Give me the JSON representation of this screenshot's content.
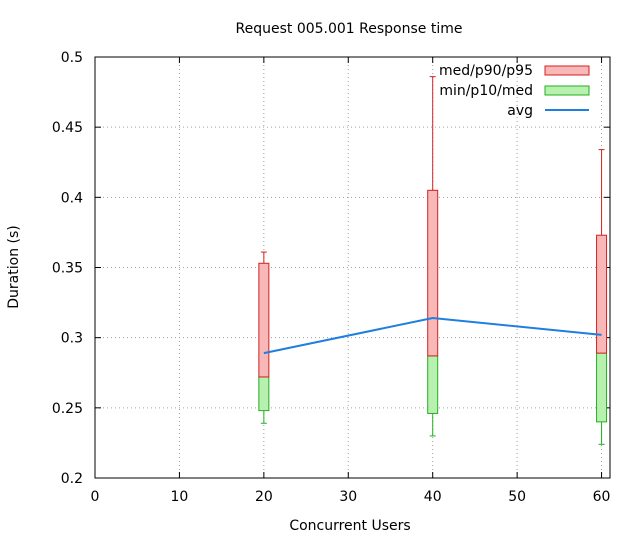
{
  "chart_data": {
    "type": "box",
    "title": "Request 005.001 Response time",
    "xlabel": "Concurrent Users",
    "ylabel": "Duration (s)",
    "xlim": [
      0,
      61
    ],
    "ylim": [
      0.2,
      0.5
    ],
    "x_ticks": [
      "0",
      "10",
      "20",
      "30",
      "40",
      "50",
      "60"
    ],
    "y_ticks": [
      "0.2",
      "0.25",
      "0.3",
      "0.35",
      "0.4",
      "0.45",
      "0.5"
    ],
    "grid": true,
    "legend_position": "top-right",
    "legend": [
      {
        "label": "med/p90/p95",
        "kind": "box",
        "fill": "#f8b8b8",
        "stroke": "#d42020"
      },
      {
        "label": "min/p10/med",
        "kind": "box",
        "fill": "#b8f0b0",
        "stroke": "#20b020"
      },
      {
        "label": "avg",
        "kind": "line",
        "stroke": "#1e7fe0"
      }
    ],
    "x": [
      20,
      40,
      60
    ],
    "min": [
      0.239,
      0.23,
      0.224
    ],
    "p10": [
      0.248,
      0.246,
      0.24
    ],
    "med": [
      0.272,
      0.287,
      0.289
    ],
    "p90": [
      0.353,
      0.405,
      0.373
    ],
    "p95": [
      0.361,
      0.486,
      0.434
    ],
    "avg": [
      0.289,
      0.314,
      0.302
    ]
  }
}
